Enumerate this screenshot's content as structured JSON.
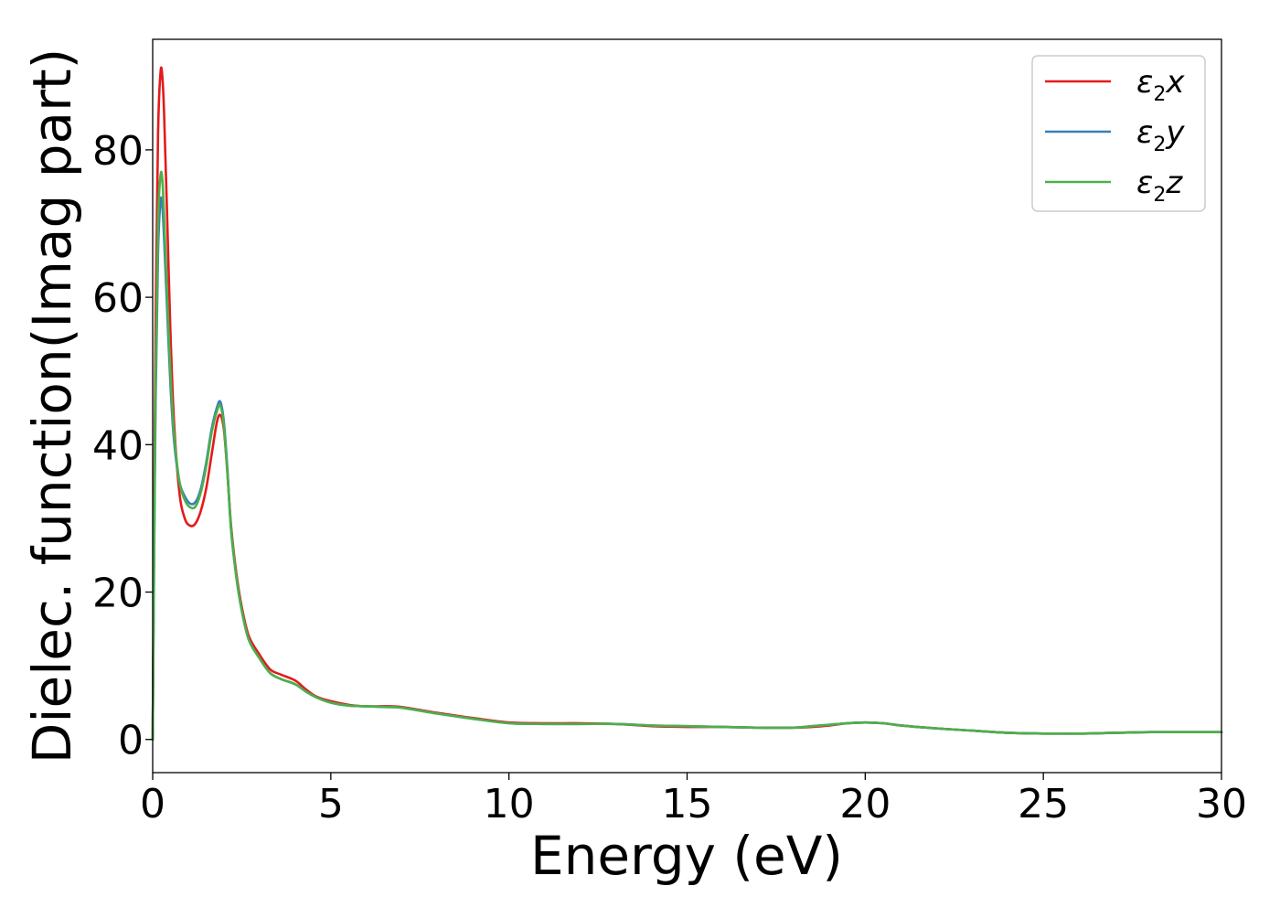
{
  "chart_data": {
    "type": "line",
    "title": "",
    "xlabel": "Energy (eV)",
    "ylabel": "Dielec. function(Imag part)",
    "xlim": [
      0,
      30
    ],
    "ylim": [
      -4.5,
      95
    ],
    "x_ticks": [
      0,
      5,
      10,
      15,
      20,
      25,
      30
    ],
    "y_ticks": [
      0,
      20,
      40,
      60,
      80
    ],
    "grid": false,
    "legend_position": "top-right",
    "x": [
      0,
      0.03,
      0.08,
      0.15,
      0.22,
      0.27,
      0.32,
      0.4,
      0.5,
      0.6,
      0.75,
      0.9,
      1.05,
      1.2,
      1.35,
      1.5,
      1.65,
      1.8,
      1.9,
      2.0,
      2.1,
      2.2,
      2.35,
      2.5,
      2.7,
      3.0,
      3.3,
      3.6,
      4.0,
      4.3,
      4.6,
      5.0,
      5.5,
      6.0,
      6.5,
      7.0,
      8.0,
      9.0,
      10.0,
      11.0,
      12.0,
      13.0,
      14.0,
      15.0,
      16.0,
      17.0,
      18.0,
      18.5,
      19.0,
      19.5,
      20.0,
      20.5,
      21.0,
      22.0,
      23.0,
      24.0,
      25.0,
      26.0,
      27.0,
      28.0,
      29.0,
      30.0
    ],
    "series": [
      {
        "name": "x",
        "color": "#e41a1c",
        "values": [
          0,
          22,
          55,
          82,
          90.5,
          90,
          85,
          72,
          55,
          43,
          33.5,
          30,
          29,
          29.3,
          31,
          34,
          38.5,
          43,
          44,
          42,
          36,
          29,
          22.5,
          18,
          14,
          11.5,
          9.5,
          8.8,
          8,
          6.8,
          5.8,
          5.2,
          4.7,
          4.5,
          4.5,
          4.4,
          3.6,
          2.9,
          2.3,
          2.2,
          2.2,
          2.1,
          1.8,
          1.7,
          1.7,
          1.6,
          1.6,
          1.7,
          1.9,
          2.2,
          2.3,
          2.2,
          1.9,
          1.5,
          1.2,
          0.9,
          0.8,
          0.8,
          0.9,
          1.0,
          1.0,
          1.0
        ]
      },
      {
        "name": "y",
        "color": "#377eb8",
        "values": [
          0,
          18,
          45,
          66,
          73,
          72.5,
          68,
          59,
          48,
          40.5,
          35,
          33,
          32,
          32.2,
          34,
          37.5,
          42,
          45,
          45.8,
          43,
          36.5,
          28.5,
          22,
          17.5,
          13.5,
          11,
          9,
          8.2,
          7.5,
          6.5,
          5.7,
          5,
          4.6,
          4.5,
          4.4,
          4.3,
          3.5,
          2.8,
          2.2,
          2.1,
          2.1,
          2.1,
          1.9,
          1.8,
          1.7,
          1.6,
          1.6,
          1.8,
          2.0,
          2.2,
          2.3,
          2.2,
          1.9,
          1.5,
          1.2,
          0.9,
          0.8,
          0.8,
          0.9,
          1.0,
          1.0,
          1.0
        ]
      },
      {
        "name": "z",
        "color": "#4daf4a",
        "values": [
          0,
          19,
          48,
          70,
          76.5,
          76,
          71,
          61,
          49.5,
          41.5,
          35,
          32.5,
          31.5,
          31.6,
          33.5,
          37,
          41.5,
          44.5,
          45.3,
          42.5,
          36,
          28.5,
          22,
          17.5,
          13.5,
          11,
          9,
          8.2,
          7.5,
          6.5,
          5.7,
          5,
          4.6,
          4.5,
          4.4,
          4.3,
          3.5,
          2.8,
          2.2,
          2.1,
          2.1,
          2.1,
          1.9,
          1.8,
          1.7,
          1.6,
          1.6,
          1.8,
          2.0,
          2.2,
          2.3,
          2.2,
          1.9,
          1.5,
          1.2,
          0.9,
          0.8,
          0.8,
          0.9,
          1.0,
          1.0,
          1.0
        ]
      }
    ]
  }
}
